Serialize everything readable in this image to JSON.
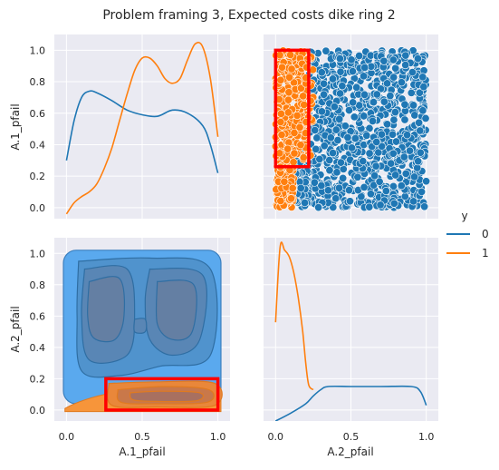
{
  "chart_data": {
    "type": "pairplot",
    "title": "Problem framing 3, Expected costs dike ring 2",
    "variables": [
      "A.1_pfail",
      "A.2_pfail"
    ],
    "hue": "y",
    "legend": {
      "title": "y",
      "placement": "right",
      "entries": [
        {
          "name": "0",
          "color": "#1f77b4"
        },
        {
          "name": "1",
          "color": "#ff7f0e"
        }
      ]
    },
    "x_ticks": [
      "0.0",
      "0.5",
      "1.0"
    ],
    "x_tick_values": [
      0,
      0.5,
      1
    ],
    "y_ticks": [
      "0.0",
      "0.2",
      "0.4",
      "0.6",
      "0.8",
      "1.0"
    ],
    "y_tick_values": [
      0,
      0.2,
      0.4,
      0.6,
      0.8,
      1.0
    ],
    "xlim": [
      -0.08,
      1.08
    ],
    "ylim": [
      -0.07,
      1.1
    ],
    "grid": true,
    "panels": {
      "a1_kde": {
        "type": "line",
        "series": [
          {
            "name": "0",
            "color": "#1f77b4",
            "x": [
              0,
              0.05,
              0.1,
              0.15,
              0.2,
              0.3,
              0.4,
              0.5,
              0.6,
              0.7,
              0.8,
              0.9,
              0.95,
              1.0
            ],
            "y": [
              0.3,
              0.55,
              0.7,
              0.74,
              0.73,
              0.68,
              0.62,
              0.59,
              0.58,
              0.62,
              0.6,
              0.52,
              0.4,
              0.22
            ]
          },
          {
            "name": "1",
            "color": "#ff7f0e",
            "x": [
              0,
              0.05,
              0.1,
              0.15,
              0.2,
              0.25,
              0.3,
              0.35,
              0.4,
              0.45,
              0.5,
              0.55,
              0.6,
              0.65,
              0.7,
              0.75,
              0.8,
              0.85,
              0.9,
              0.95,
              1.0
            ],
            "y": [
              -0.04,
              0.03,
              0.07,
              0.1,
              0.15,
              0.25,
              0.38,
              0.55,
              0.72,
              0.87,
              0.95,
              0.95,
              0.9,
              0.82,
              0.79,
              0.82,
              0.94,
              1.04,
              1.02,
              0.82,
              0.45
            ]
          }
        ]
      },
      "a2_kde": {
        "type": "line",
        "series": [
          {
            "name": "1",
            "color": "#ff7f0e",
            "x": [
              0,
              0.03,
              0.06,
              0.09,
              0.12,
              0.15,
              0.18,
              0.2,
              0.22,
              0.25
            ],
            "y": [
              0.56,
              1.04,
              1.02,
              0.98,
              0.88,
              0.72,
              0.5,
              0.3,
              0.16,
              0.13
            ]
          },
          {
            "name": "0",
            "color": "#1f77b4",
            "x": [
              0,
              0.1,
              0.2,
              0.25,
              0.3,
              0.35,
              0.5,
              0.7,
              0.9,
              0.96,
              1.0
            ],
            "y": [
              -0.07,
              -0.02,
              0.04,
              0.09,
              0.13,
              0.15,
              0.15,
              0.15,
              0.15,
              0.12,
              0.03
            ]
          }
        ]
      },
      "scatter": {
        "type": "scatter",
        "series": [
          {
            "name": "0",
            "color": "#1f77b4",
            "x_range": [
              0.0,
              1.0
            ],
            "y_range": [
              0.0,
              1.0
            ],
            "note_x_min_for_low_y": 0.15
          },
          {
            "name": "1",
            "color": "#ff7f0e",
            "x_range": [
              0.0,
              0.28
            ],
            "y_range": [
              0.0,
              1.0
            ]
          }
        ],
        "highlight_box": {
          "x0": 0.0,
          "x1": 0.22,
          "y0": 0.26,
          "y1": 1.0,
          "color": "#ff0000"
        }
      },
      "kde2d": {
        "type": "kde_contour",
        "series": [
          {
            "name": "0",
            "color": "#1f77b4",
            "x_range": [
              0.0,
              1.0
            ],
            "y_range": [
              0.0,
              1.0
            ]
          },
          {
            "name": "1",
            "color": "#ff7f0e",
            "x_range": [
              0.0,
              1.0
            ],
            "y_range": [
              0.0,
              0.2
            ]
          }
        ],
        "highlight_box": {
          "x0": 0.26,
          "x1": 1.0,
          "y0": 0.0,
          "y1": 0.2,
          "color": "#ff0000"
        }
      }
    }
  }
}
